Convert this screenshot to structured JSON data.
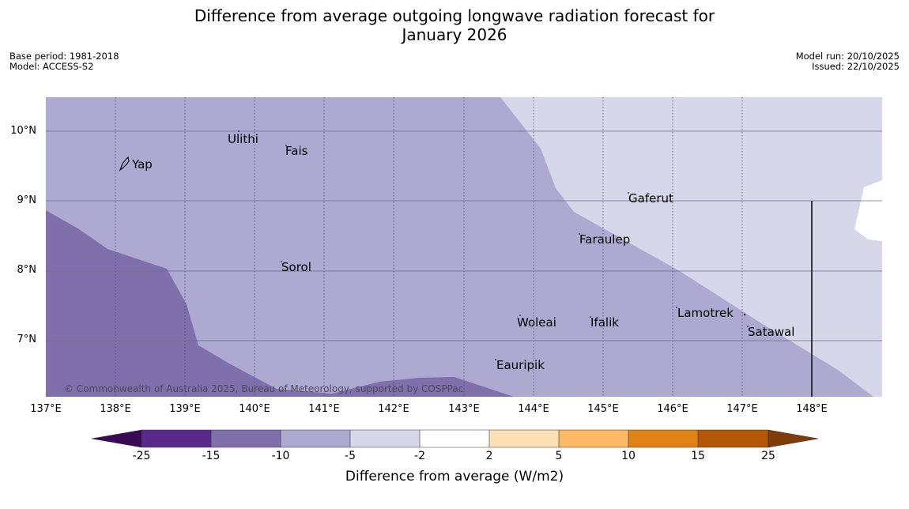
{
  "title_line1": "Difference from average outgoing longwave radiation forecast for",
  "title_line2": "January 2026",
  "meta_left": {
    "base_period": "Base period: 1981-2018",
    "model": "Model: ACCESS-S2"
  },
  "meta_right": {
    "model_run": "Model run: 20/10/2025",
    "issued": "Issued: 22/10/2025"
  },
  "map": {
    "lon_range": [
      137,
      149
    ],
    "lat_range": [
      6.2,
      10.5
    ],
    "lon_ticks": [
      "137°E",
      "138°E",
      "139°E",
      "140°E",
      "141°E",
      "142°E",
      "143°E",
      "144°E",
      "145°E",
      "146°E",
      "147°E",
      "148°E"
    ],
    "lat_ticks": [
      "10°N",
      "9°N",
      "8°N",
      "7°N"
    ],
    "places": [
      {
        "name": "Yap",
        "lon": 138.2,
        "lat": 9.5
      },
      {
        "name": "Ulithi",
        "lon": 139.7,
        "lat": 9.9
      },
      {
        "name": "Fais",
        "lon": 140.5,
        "lat": 9.75
      },
      {
        "name": "Gaferut",
        "lon": 145.4,
        "lat": 9.1
      },
      {
        "name": "Faraulep",
        "lon": 144.6,
        "lat": 8.5
      },
      {
        "name": "Sorol",
        "lon": 140.4,
        "lat": 8.1
      },
      {
        "name": "Lamotrek",
        "lon": 146.0,
        "lat": 7.4
      },
      {
        "name": "Woleai",
        "lon": 143.9,
        "lat": 7.3
      },
      {
        "name": "Ifalik",
        "lon": 144.8,
        "lat": 7.3
      },
      {
        "name": "Satawal",
        "lon": 147.0,
        "lat": 7.2
      },
      {
        "name": "Eauripik",
        "lon": 143.4,
        "lat": 6.7
      }
    ],
    "copyright": "© Commonwealth of Australia 2025, Bureau of Meteorology, supported by COSPPac"
  },
  "colorbar": {
    "title": "Difference from average (W/m2)",
    "labels": [
      "-25",
      "-15",
      "-10",
      "-5",
      "-2",
      "2",
      "5",
      "10",
      "15",
      "25"
    ],
    "colors": {
      "below_min": "#3a0a57",
      "bins": [
        "#5a2a8a",
        "#7f6fab",
        "#aea9d0",
        "#d7d7ea",
        "#ffffff",
        "#fee0b6",
        "#fdb863",
        "#e08214",
        "#b35806"
      ],
      "above_max": "#7f3b08"
    }
  }
}
